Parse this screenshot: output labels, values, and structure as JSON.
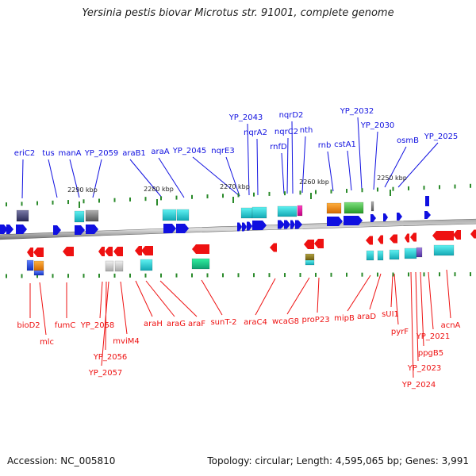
{
  "title": "Yersinia pestis biovar Microtus str. 91001, complete genome",
  "footer": {
    "accession": "Accession: NC_005810",
    "summary": "Topology: circular; Length: 4,595,065 bp; Genes: 3,991"
  },
  "colors": {
    "forward": "#1010e0",
    "reverse": "#ee1111",
    "backbone": "#808080",
    "tick": "#2a8a2a"
  },
  "scale_labels": [
    "2290 kbp",
    "2280 kbp",
    "2270 kbp",
    "2260 kbp",
    "2250 kbp"
  ],
  "top_labels": [
    "eriC2",
    "tus",
    "manA",
    "YP_2059",
    "araB1",
    "araA",
    "YP_2045",
    "nqrE3",
    "YP_2043",
    "nqrA2",
    "nqrD2",
    "nqrC2",
    "rnfD",
    "nth",
    "rnb",
    "cstA1",
    "YP_2032",
    "YP_2030",
    "osmB",
    "YP_2025"
  ],
  "bottom_labels": [
    "bioD2",
    "mlc",
    "fumC",
    "YP_2058",
    "YP_2056",
    "YP_2057",
    "mviM4",
    "araH",
    "araG",
    "araF",
    "sunT-2",
    "araC4",
    "wcaG8",
    "proP23",
    "mipB",
    "araD",
    "sUI1",
    "pyrF",
    "ppgB5",
    "YP_2021",
    "YP_2023",
    "YP_2024",
    "acnA"
  ]
}
